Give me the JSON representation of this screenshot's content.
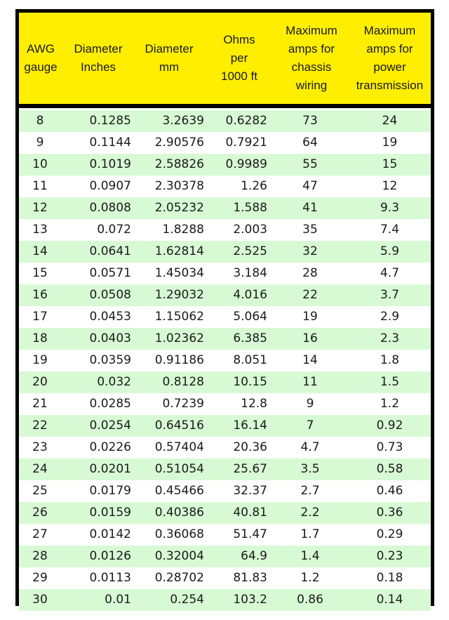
{
  "headers": [
    "AWG\ngauge",
    "Diameter\nInches",
    "Diameter\nmm",
    "Ohms\nper\n1000 ft",
    "Maximum\namps for\nchassis\nwiring",
    "Maximum\namps for\npower\ntransmission"
  ],
  "rows": [
    [
      "8",
      "0.1285",
      "3.2639",
      "0.6282",
      "73",
      "24"
    ],
    [
      "9",
      "0.1144",
      "2.90576",
      "0.7921",
      "64",
      "19"
    ],
    [
      "10",
      "0.1019",
      "2.58826",
      "0.9989",
      "55",
      "15"
    ],
    [
      "11",
      "0.0907",
      "2.30378",
      "1.26",
      "47",
      "12"
    ],
    [
      "12",
      "0.0808",
      "2.05232",
      "1.588",
      "41",
      "9.3"
    ],
    [
      "13",
      "0.072",
      "1.8288",
      "2.003",
      "35",
      "7.4"
    ],
    [
      "14",
      "0.0641",
      "1.62814",
      "2.525",
      "32",
      "5.9"
    ],
    [
      "15",
      "0.0571",
      "1.45034",
      "3.184",
      "28",
      "4.7"
    ],
    [
      "16",
      "0.0508",
      "1.29032",
      "4.016",
      "22",
      "3.7"
    ],
    [
      "17",
      "0.0453",
      "1.15062",
      "5.064",
      "19",
      "2.9"
    ],
    [
      "18",
      "0.0403",
      "1.02362",
      "6.385",
      "16",
      "2.3"
    ],
    [
      "19",
      "0.0359",
      "0.91186",
      "8.051",
      "14",
      "1.8"
    ],
    [
      "20",
      "0.032",
      "0.8128",
      "10.15",
      "11",
      "1.5"
    ],
    [
      "21",
      "0.0285",
      "0.7239",
      "12.8",
      "9",
      "1.2"
    ],
    [
      "22",
      "0.0254",
      "0.64516",
      "16.14",
      "7",
      "0.92"
    ],
    [
      "23",
      "0.0226",
      "0.57404",
      "20.36",
      "4.7",
      "0.73"
    ],
    [
      "24",
      "0.0201",
      "0.51054",
      "25.67",
      "3.5",
      "0.58"
    ],
    [
      "25",
      "0.0179",
      "0.45466",
      "32.37",
      "2.7",
      "0.46"
    ],
    [
      "26",
      "0.0159",
      "0.40386",
      "40.81",
      "2.2",
      "0.36"
    ],
    [
      "27",
      "0.0142",
      "0.36068",
      "51.47",
      "1.7",
      "0.29"
    ],
    [
      "28",
      "0.0126",
      "0.32004",
      "64.9",
      "1.4",
      "0.23"
    ],
    [
      "29",
      "0.0113",
      "0.28702",
      "81.83",
      "1.2",
      "0.18"
    ],
    [
      "30",
      "0.01",
      "0.254",
      "103.2",
      "0.86",
      "0.14"
    ]
  ],
  "colors": {
    "header_bg": "#ffee00",
    "stripe_bg": "#d7fad4",
    "border": "#000000"
  }
}
